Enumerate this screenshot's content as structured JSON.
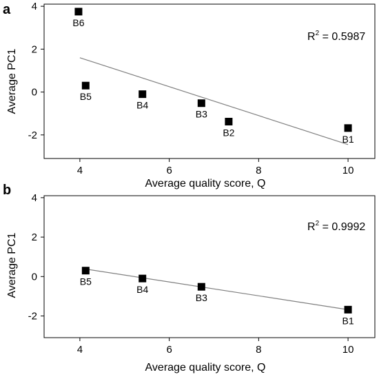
{
  "chart_data": [
    {
      "panel_label": "a",
      "type": "scatter",
      "xlabel": "Average quality score, Q",
      "ylabel": "Average PC1",
      "xlim": [
        3.2,
        10.6
      ],
      "ylim": [
        -3.1,
        4.1
      ],
      "xticks": [
        4,
        6,
        8,
        10
      ],
      "yticks": [
        -2,
        0,
        2,
        4
      ],
      "xtick_labels": [
        "4",
        "6",
        "8",
        "10"
      ],
      "ytick_labels": [
        "-2",
        "0",
        "2",
        "4"
      ],
      "points": [
        {
          "label": "B6",
          "x": 3.97,
          "y": 3.75
        },
        {
          "label": "B5",
          "x": 4.13,
          "y": 0.3
        },
        {
          "label": "B4",
          "x": 5.4,
          "y": -0.1
        },
        {
          "label": "B3",
          "x": 6.72,
          "y": -0.52
        },
        {
          "label": "B2",
          "x": 7.33,
          "y": -1.38
        },
        {
          "label": "B1",
          "x": 10.0,
          "y": -1.68
        }
      ],
      "trendline": {
        "x": [
          4.0,
          10.0
        ],
        "y": [
          1.6,
          -2.45
        ]
      },
      "r2_base": "R",
      "r2_sup": "2",
      "r2_value": " = 0.5987",
      "grid": false,
      "marker": "square",
      "marker_color": "#000000",
      "trend_color": "#7f7f7f"
    },
    {
      "panel_label": "b",
      "type": "scatter",
      "xlabel": "Average quality score, Q",
      "ylabel": "Average PC1",
      "xlim": [
        3.2,
        10.6
      ],
      "ylim": [
        -3.1,
        4.1
      ],
      "xticks": [
        4,
        6,
        8,
        10
      ],
      "yticks": [
        -2,
        0,
        2,
        4
      ],
      "xtick_labels": [
        "4",
        "6",
        "8",
        "10"
      ],
      "ytick_labels": [
        "-2",
        "0",
        "2",
        "4"
      ],
      "points": [
        {
          "label": "B5",
          "x": 4.13,
          "y": 0.3
        },
        {
          "label": "B4",
          "x": 5.4,
          "y": -0.1
        },
        {
          "label": "B3",
          "x": 6.72,
          "y": -0.52
        },
        {
          "label": "B1",
          "x": 10.0,
          "y": -1.68
        }
      ],
      "trendline": {
        "x": [
          4.13,
          10.0
        ],
        "y": [
          0.38,
          -1.68
        ]
      },
      "r2_base": "R",
      "r2_sup": "2",
      "r2_value": " = 0.9992",
      "grid": false,
      "marker": "square",
      "marker_color": "#000000",
      "trend_color": "#7f7f7f"
    }
  ]
}
